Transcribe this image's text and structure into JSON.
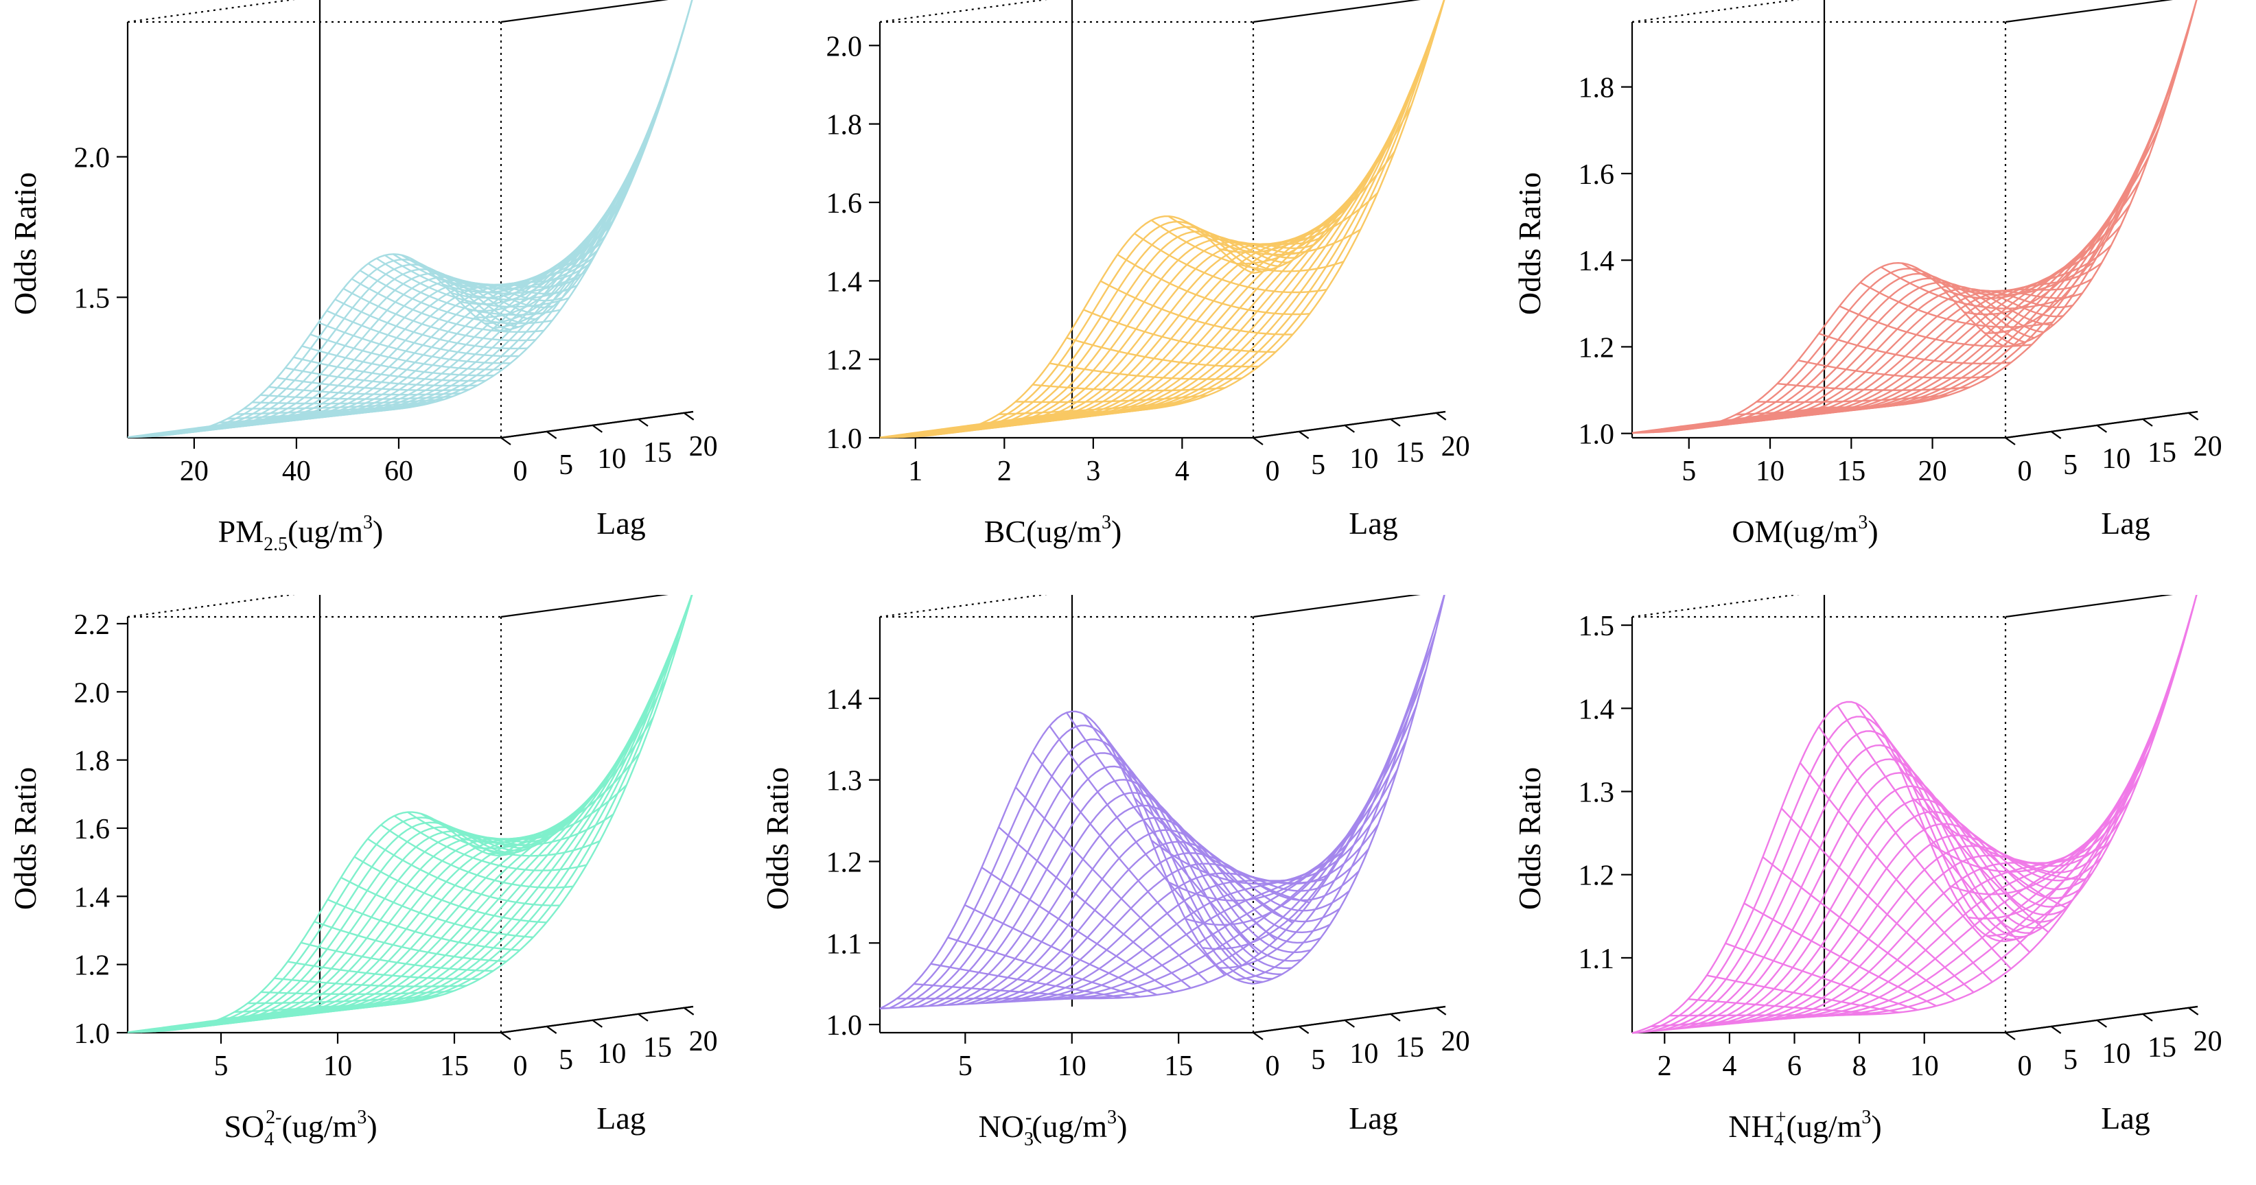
{
  "figure": {
    "y_label": "Odds Ratio",
    "lag_label": "Lag",
    "lag_ticks": [
      0,
      5,
      10,
      15,
      20
    ]
  },
  "chart_data": [
    {
      "type": "surface",
      "pollutant": "PM2.5",
      "xlabel_main": "PM",
      "xlabel_sub": "2.5",
      "xlabel_sup": "",
      "xlabel_unit": "(ug/m",
      "xlabel_unit_sup": "3",
      "xlabel_close": ")",
      "ylabel": "Odds Ratio",
      "zlabel": "Lag",
      "color": "#a8dde3",
      "x_range": [
        7,
        80
      ],
      "x_ticks": [
        20,
        40,
        60
      ],
      "lag_range": [
        0,
        21
      ],
      "lag_ticks": [
        0,
        5,
        10,
        15,
        20
      ],
      "or_range": [
        1.0,
        2.48
      ],
      "or_ticks": [
        1.5,
        2.0
      ],
      "surface_shape": {
        "peak_x": 62,
        "peak_or_at_lag0": 1.72,
        "or_at_max_x_lag21": 2.48,
        "trough_or_right": 1.38,
        "mesh_lines": [
          45,
          22
        ]
      }
    },
    {
      "type": "surface",
      "pollutant": "BC",
      "xlabel_main": "BC",
      "xlabel_sub": "",
      "xlabel_sup": "",
      "xlabel_unit": "(ug/m",
      "xlabel_unit_sup": "3",
      "xlabel_close": ")",
      "ylabel": "",
      "zlabel": "Lag",
      "color": "#f9c863",
      "x_range": [
        0.6,
        4.8
      ],
      "x_ticks": [
        1,
        2,
        3,
        4
      ],
      "lag_range": [
        0,
        21
      ],
      "lag_ticks": [
        0,
        5,
        10,
        15,
        20
      ],
      "or_range": [
        1.0,
        2.06
      ],
      "or_ticks": [
        1.0,
        1.2,
        1.4,
        1.6,
        1.8,
        2.0
      ],
      "surface_shape": {
        "peak_x": 4.0,
        "peak_or_at_lag0": 1.6,
        "or_at_max_x_lag21": 2.06,
        "trough_or_right": 1.42,
        "mesh_lines": [
          22,
          22
        ]
      }
    },
    {
      "type": "surface",
      "pollutant": "OM",
      "xlabel_main": "OM",
      "xlabel_sub": "",
      "xlabel_sup": "",
      "xlabel_unit": "(ug/m",
      "xlabel_unit_sup": "3",
      "xlabel_close": ")",
      "ylabel": "Odds Ratio",
      "zlabel": "Lag",
      "color": "#f08a80",
      "x_range": [
        1.5,
        24.5
      ],
      "x_ticks": [
        5,
        10,
        15,
        20
      ],
      "lag_range": [
        0,
        21
      ],
      "lag_ticks": [
        0,
        5,
        10,
        15,
        20
      ],
      "or_range": [
        0.99,
        1.95
      ],
      "or_ticks": [
        1.0,
        1.2,
        1.4,
        1.6,
        1.8
      ],
      "surface_shape": {
        "peak_x": 19,
        "peak_or_at_lag0": 1.45,
        "or_at_max_x_lag21": 1.95,
        "trough_or_right": 1.2,
        "mesh_lines": [
          18,
          20
        ]
      }
    },
    {
      "type": "surface",
      "pollutant": "SO4",
      "xlabel_main": "SO",
      "xlabel_sub": "4",
      "xlabel_sup": "2-",
      "xlabel_unit": "(ug/m",
      "xlabel_unit_sup": "3",
      "xlabel_close": ")",
      "ylabel": "Odds Ratio",
      "zlabel": "Lag",
      "color": "#7ff0cc",
      "x_range": [
        1.0,
        17.0
      ],
      "x_ticks": [
        5,
        10,
        15
      ],
      "lag_range": [
        0,
        21
      ],
      "lag_ticks": [
        0,
        5,
        10,
        15,
        20
      ],
      "or_range": [
        1.0,
        2.22
      ],
      "or_ticks": [
        1.0,
        1.2,
        1.4,
        1.6,
        1.8,
        2.0,
        2.2
      ],
      "surface_shape": {
        "peak_x": 13.5,
        "peak_or_at_lag0": 1.65,
        "or_at_max_x_lag21": 2.22,
        "trough_or_right": 1.52,
        "mesh_lines": [
          28,
          22
        ]
      }
    },
    {
      "type": "surface",
      "pollutant": "NO3",
      "xlabel_main": "NO",
      "xlabel_sub": "3",
      "xlabel_sup": "-",
      "xlabel_unit": "(ug/m",
      "xlabel_unit_sup": "3",
      "xlabel_close": ")",
      "ylabel": "Odds Ratio",
      "zlabel": "Lag",
      "color": "#a487ec",
      "x_range": [
        1.0,
        18.5
      ],
      "x_ticks": [
        5,
        10,
        15
      ],
      "lag_range": [
        0,
        21
      ],
      "lag_ticks": [
        0,
        5,
        10,
        15,
        20
      ],
      "or_range": [
        0.99,
        1.5
      ],
      "or_ticks": [
        1.0,
        1.1,
        1.2,
        1.3,
        1.4
      ],
      "surface_shape": {
        "peak_x": 10.5,
        "peak_or_at_lag0": 1.41,
        "or_at_max_x_lag21": 1.5,
        "trough_or_right": 1.05,
        "mesh_lines": [
          22,
          20
        ]
      }
    },
    {
      "type": "surface",
      "pollutant": "NH4",
      "xlabel_main": "NH",
      "xlabel_sub": "4",
      "xlabel_sup": "+",
      "xlabel_unit": "(ug/m",
      "xlabel_unit_sup": "3",
      "xlabel_close": ")",
      "ylabel": "Odds Ratio",
      "zlabel": "Lag",
      "color": "#f07ae8",
      "x_range": [
        1.0,
        12.5
      ],
      "x_ticks": [
        2,
        4,
        6,
        8,
        10
      ],
      "lag_range": [
        0,
        21
      ],
      "lag_ticks": [
        0,
        5,
        10,
        15,
        20
      ],
      "or_range": [
        1.01,
        1.51
      ],
      "or_ticks": [
        1.1,
        1.2,
        1.3,
        1.4,
        1.5
      ],
      "surface_shape": {
        "peak_x": 8.0,
        "peak_or_at_lag0": 1.44,
        "or_at_max_x_lag21": 1.51,
        "trough_or_right": 1.12,
        "mesh_lines": [
          20,
          20
        ]
      }
    }
  ]
}
